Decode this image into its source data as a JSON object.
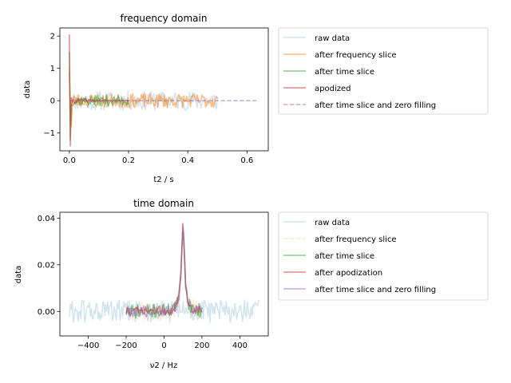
{
  "chart_data": [
    {
      "type": "line",
      "title": "frequency domain",
      "xlabel": "t2 / s",
      "ylabel": "data",
      "xlim": [
        -0.032,
        0.672
      ],
      "ylim": [
        -1.55,
        2.25
      ],
      "xticks": [
        0.0,
        0.2,
        0.4,
        0.6
      ],
      "xtick_labels": [
        "0.0",
        "0.2",
        "0.4",
        "0.6"
      ],
      "yticks": [
        -1,
        0,
        1,
        2
      ],
      "ytick_labels": [
        "−1",
        "0",
        "1",
        "2"
      ],
      "grid": false,
      "legend_placement": "outside-right-top",
      "series": [
        {
          "name": "raw data",
          "color": "#1f77b4",
          "alpha": 0.2,
          "style": "solid",
          "x_range": [
            0.0,
            0.5
          ],
          "amplitude": 0.3,
          "seed": 11,
          "spikes": [
            [
              0.0,
              1.0
            ],
            [
              0.005,
              -0.7
            ]
          ]
        },
        {
          "name": "after frequency slice",
          "color": "#ff7f0e",
          "alpha": 0.55,
          "style": "solid",
          "x_range": [
            0.0,
            0.5
          ],
          "amplitude": 0.22,
          "seed": 23,
          "spikes": [
            [
              0.0,
              0.9
            ],
            [
              0.006,
              -0.8
            ]
          ]
        },
        {
          "name": "after time slice",
          "color": "#2ca02c",
          "alpha": 0.55,
          "style": "solid",
          "x_range": [
            0.0,
            0.2
          ],
          "amplitude": 0.16,
          "seed": 37,
          "spikes": [
            [
              0.0,
              1.5
            ],
            [
              0.004,
              -1.2
            ]
          ]
        },
        {
          "name": "apodized",
          "color": "#d62728",
          "alpha": 0.55,
          "style": "solid",
          "x_range": [
            0.0,
            0.2
          ],
          "amplitude": 0.12,
          "decay": 0.08,
          "seed": 41,
          "spikes": [
            [
              0.0,
              2.05
            ],
            [
              0.004,
              -1.4
            ]
          ]
        },
        {
          "name": "after time slice and zero filling",
          "color": "#9467bd",
          "alpha": 0.55,
          "style": "dashed",
          "x_range": [
            0.0,
            0.64
          ],
          "amplitude": 0.0,
          "seed": 53,
          "spikes": []
        }
      ]
    },
    {
      "type": "line",
      "title": "time domain",
      "xlabel": "ν2 / Hz",
      "ylabel": "data",
      "xlim": [
        -550,
        550
      ],
      "ylim": [
        -0.0105,
        0.0425
      ],
      "xticks": [
        -400,
        -200,
        0,
        200,
        400
      ],
      "xtick_labels": [
        "−400",
        "−200",
        "0",
        "200",
        "400"
      ],
      "yticks": [
        0.0,
        0.02,
        0.04
      ],
      "ytick_labels": [
        "0.00",
        "0.02",
        "0.04"
      ],
      "grid": false,
      "legend_placement": "outside-right-top",
      "series": [
        {
          "name": "raw data",
          "color": "#1f77b4",
          "alpha": 0.2,
          "style": "solid",
          "x_range": [
            -500,
            500
          ],
          "amplitude": 0.005,
          "seed": 61,
          "peak": [
            100,
            0.0
          ]
        },
        {
          "name": "after frequency slice",
          "color": "#ff7f0e",
          "alpha": 0.2,
          "style": "dashed",
          "x_range": [
            -200,
            200
          ],
          "amplitude": 0.004,
          "seed": 67,
          "peak": [
            100,
            0.035
          ]
        },
        {
          "name": "after time slice",
          "color": "#2ca02c",
          "alpha": 0.55,
          "style": "solid",
          "x_range": [
            -200,
            200
          ],
          "amplitude": 0.003,
          "seed": 71,
          "peak": [
            100,
            0.036
          ]
        },
        {
          "name": "after apodization",
          "color": "#d62728",
          "alpha": 0.55,
          "style": "solid",
          "x_range": [
            -200,
            200
          ],
          "amplitude": 0.002,
          "seed": 73,
          "peak": [
            100,
            0.038
          ]
        },
        {
          "name": "after time slice and zero filling",
          "color": "#9467bd",
          "alpha": 0.55,
          "style": "solid",
          "x_range": [
            -200,
            200
          ],
          "amplitude": 0.0025,
          "seed": 79,
          "peak": [
            100,
            0.037
          ]
        }
      ]
    }
  ]
}
